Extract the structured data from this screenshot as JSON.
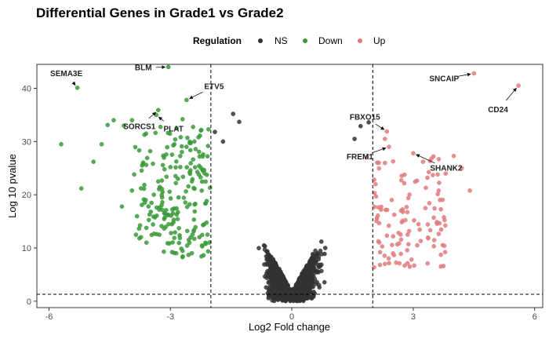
{
  "chart_data": {
    "type": "scatter",
    "title": "Differential Genes in Grade1 vs Grade2",
    "xlabel": "Log2 Fold change",
    "ylabel": "Log 10 pvalue",
    "xlim": [
      -6.3,
      6.2
    ],
    "ylim": [
      -1.2,
      44.5
    ],
    "x_ticks": [
      -6,
      -3,
      0,
      3,
      6
    ],
    "y_ticks": [
      0,
      10,
      20,
      30,
      40
    ],
    "grid": false,
    "fc_threshold": 2,
    "p_threshold": 1.3,
    "legend": {
      "title": "Regulation",
      "placement": "top",
      "entries": [
        {
          "label": "NS",
          "color": "#333333"
        },
        {
          "label": "Down",
          "color": "#3a9a3a"
        },
        {
          "label": "Up",
          "color": "#e07b7e"
        }
      ]
    },
    "colors": {
      "NS": "#333333",
      "Down": "#3a9a3a",
      "Up": "#e07b7e"
    },
    "ns_distribution": {
      "x_range": [
        -2,
        2
      ],
      "count": 1700
    },
    "down_points": [
      [
        -5.3,
        40.1
      ],
      [
        -3.05,
        44.0
      ],
      [
        -2.6,
        37.8
      ],
      [
        -3.3,
        35.9
      ],
      [
        -3.35,
        35.0
      ],
      [
        -2.7,
        34.2
      ],
      [
        -5.7,
        29.5
      ],
      [
        -5.2,
        21.2
      ],
      [
        -4.9,
        26.2
      ],
      [
        -4.7,
        29.5
      ],
      [
        -4.55,
        33.1
      ],
      [
        -4.4,
        34.0
      ],
      [
        -4.15,
        33.0
      ],
      [
        -3.95,
        34.0
      ],
      [
        -4.2,
        17.8
      ],
      [
        -3.95,
        20.8
      ],
      [
        -3.85,
        12.5
      ],
      [
        -3.7,
        25.5
      ],
      [
        -3.6,
        31.5
      ],
      [
        -3.5,
        28.2
      ],
      [
        -3.3,
        22.5
      ],
      [
        -3.15,
        16.5
      ],
      [
        -3.0,
        25.2
      ],
      [
        -2.8,
        19.5
      ],
      [
        -2.6,
        29.0
      ],
      [
        -2.5,
        12.0
      ],
      [
        -2.3,
        23.8
      ]
    ],
    "down_cluster": {
      "x_range": [
        -3.9,
        -2.0
      ],
      "y_range": [
        8,
        33
      ],
      "count": 200
    },
    "up_points": [
      [
        4.5,
        42.8
      ],
      [
        5.6,
        40.5
      ],
      [
        2.35,
        31.9
      ],
      [
        2.4,
        29.0
      ],
      [
        3.0,
        27.8
      ],
      [
        1.85,
        27.0
      ],
      [
        2.15,
        26.0
      ],
      [
        4.4,
        20.8
      ],
      [
        4.2,
        25.0
      ],
      [
        4.0,
        27.3
      ],
      [
        3.5,
        27.2
      ],
      [
        3.8,
        24.0
      ],
      [
        3.3,
        17.5
      ],
      [
        3.1,
        10.5
      ],
      [
        2.3,
        7.0
      ],
      [
        2.5,
        9.0
      ],
      [
        2.3,
        30.5
      ]
    ],
    "up_cluster": {
      "x_range": [
        2.0,
        3.8
      ],
      "y_range": [
        6,
        27
      ],
      "count": 110
    },
    "annotations": [
      {
        "label": "SEMA3E",
        "x": -5.3,
        "y": 40.1
      },
      {
        "label": "BLM",
        "x": -3.05,
        "y": 44.0
      },
      {
        "label": "ETV5",
        "x": -2.6,
        "y": 37.8
      },
      {
        "label": "SORCS1",
        "x": -3.3,
        "y": 35.9
      },
      {
        "label": "PLAT",
        "x": -3.35,
        "y": 35.0
      },
      {
        "label": "FBXO15",
        "x": 2.35,
        "y": 31.9
      },
      {
        "label": "FREM1",
        "x": 2.4,
        "y": 29.0
      },
      {
        "label": "SHANK2",
        "x": 3.0,
        "y": 27.8
      },
      {
        "label": "SNCAIP",
        "x": 4.5,
        "y": 42.8
      },
      {
        "label": "CD24",
        "x": 5.6,
        "y": 40.5
      }
    ]
  }
}
